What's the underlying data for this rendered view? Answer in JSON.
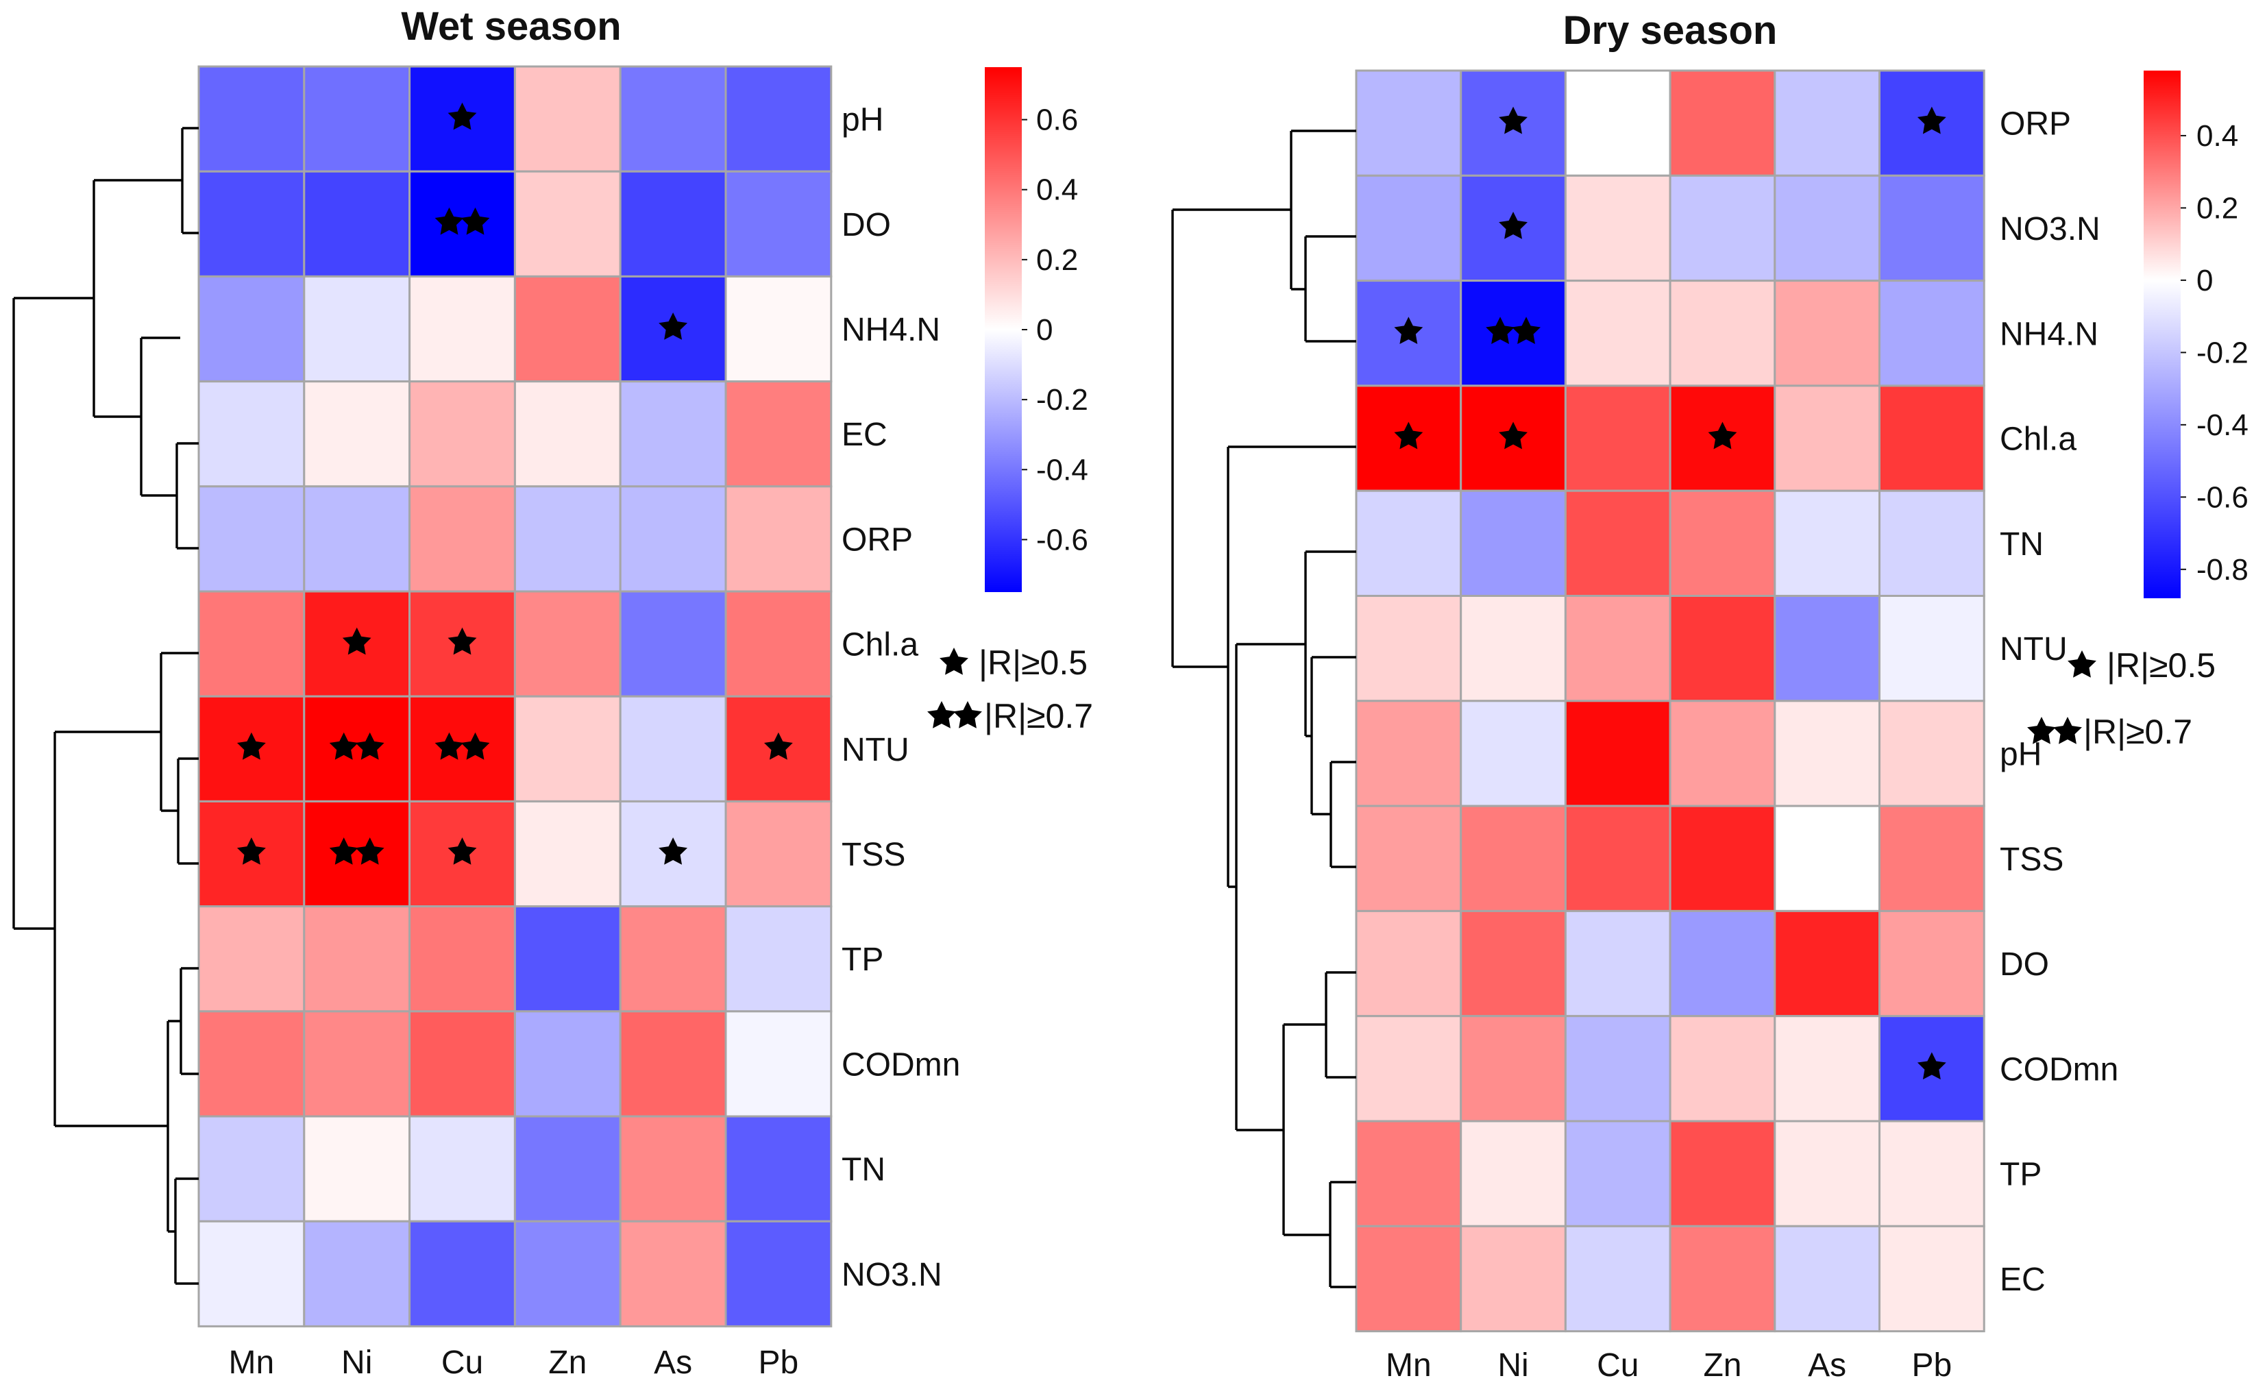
{
  "chart_data": [
    {
      "type": "heatmap",
      "title": "Wet season",
      "columns": [
        "Mn",
        "Ni",
        "Cu",
        "Zn",
        "As",
        "Pb"
      ],
      "rows": [
        "pH",
        "DO",
        "NH4.N",
        "EC",
        "ORP",
        "Chl.a",
        "NTU",
        "TSS",
        "TP",
        "CODmn",
        "TN",
        "NO3.N"
      ],
      "values": [
        [
          -0.45,
          -0.42,
          -0.7,
          0.18,
          -0.4,
          -0.48
        ],
        [
          -0.52,
          -0.55,
          -0.75,
          0.15,
          -0.55,
          -0.4
        ],
        [
          -0.3,
          -0.08,
          0.05,
          0.4,
          -0.62,
          0.02
        ],
        [
          -0.1,
          0.05,
          0.22,
          0.06,
          -0.2,
          0.38
        ],
        [
          -0.2,
          -0.2,
          0.3,
          -0.18,
          -0.2,
          0.22
        ],
        [
          0.4,
          0.67,
          0.58,
          0.35,
          -0.4,
          0.4
        ],
        [
          0.7,
          0.75,
          0.72,
          0.14,
          -0.12,
          0.6
        ],
        [
          0.64,
          0.78,
          0.58,
          0.06,
          -0.1,
          0.28
        ],
        [
          0.23,
          0.3,
          0.4,
          -0.5,
          0.35,
          -0.12
        ],
        [
          0.4,
          0.35,
          0.48,
          -0.25,
          0.45,
          -0.03
        ],
        [
          -0.15,
          0.03,
          -0.08,
          -0.4,
          0.35,
          -0.48
        ],
        [
          -0.05,
          -0.22,
          -0.48,
          -0.35,
          0.3,
          -0.48
        ]
      ],
      "stars": [
        [
          0,
          0,
          1,
          0,
          0,
          0
        ],
        [
          0,
          0,
          2,
          0,
          0,
          0
        ],
        [
          0,
          0,
          0,
          0,
          1,
          0
        ],
        [
          0,
          0,
          0,
          0,
          0,
          0
        ],
        [
          0,
          0,
          0,
          0,
          0,
          0
        ],
        [
          0,
          1,
          1,
          0,
          0,
          0
        ],
        [
          1,
          2,
          2,
          0,
          0,
          1
        ],
        [
          1,
          2,
          1,
          0,
          1,
          0
        ],
        [
          0,
          0,
          0,
          0,
          0,
          0
        ],
        [
          0,
          0,
          0,
          0,
          0,
          0
        ],
        [
          0,
          0,
          0,
          0,
          0,
          0
        ],
        [
          0,
          0,
          0,
          0,
          0,
          0
        ]
      ],
      "colorbar": {
        "min": -0.75,
        "max": 0.75,
        "ticks": [
          "0.6",
          "0.4",
          "0.2",
          "0",
          "-0.2",
          "-0.4",
          "-0.6"
        ],
        "tick_values": [
          0.6,
          0.4,
          0.2,
          0,
          -0.2,
          -0.4,
          -0.6
        ]
      },
      "legend": [
        "|R|≥0.5",
        "|R|≥0.7"
      ]
    },
    {
      "type": "heatmap",
      "title": "Dry season",
      "columns": [
        "Mn",
        "Ni",
        "Cu",
        "Zn",
        "As",
        "Pb"
      ],
      "rows": [
        "ORP",
        "NO3.N",
        "NH4.N",
        "Chl.a",
        "TN",
        "NTU",
        "pH",
        "TSS",
        "DO",
        "CODmn",
        "TP",
        "EC"
      ],
      "values": [
        [
          -0.25,
          -0.55,
          0.0,
          0.35,
          -0.2,
          -0.65
        ],
        [
          -0.3,
          -0.6,
          0.08,
          -0.2,
          -0.25,
          -0.45
        ],
        [
          -0.55,
          -0.85,
          0.08,
          0.1,
          0.2,
          -0.3
        ],
        [
          0.58,
          0.58,
          0.4,
          0.56,
          0.15,
          0.45
        ],
        [
          -0.15,
          -0.35,
          0.4,
          0.3,
          -0.1,
          -0.15
        ],
        [
          0.1,
          0.05,
          0.22,
          0.45,
          -0.4,
          -0.05
        ],
        [
          0.22,
          -0.1,
          0.56,
          0.22,
          0.05,
          0.1
        ],
        [
          0.22,
          0.3,
          0.4,
          0.5,
          0.0,
          0.3
        ],
        [
          0.15,
          0.35,
          -0.15,
          -0.35,
          0.5,
          0.22
        ],
        [
          0.1,
          0.26,
          -0.25,
          0.12,
          0.05,
          -0.65
        ],
        [
          0.3,
          0.05,
          -0.25,
          0.4,
          0.05,
          0.05
        ],
        [
          0.3,
          0.15,
          -0.15,
          0.3,
          -0.15,
          0.05
        ]
      ],
      "stars": [
        [
          0,
          1,
          0,
          0,
          0,
          1
        ],
        [
          0,
          1,
          0,
          0,
          0,
          0
        ],
        [
          1,
          2,
          0,
          0,
          0,
          0
        ],
        [
          1,
          1,
          0,
          1,
          0,
          0
        ],
        [
          0,
          0,
          0,
          0,
          0,
          0
        ],
        [
          0,
          0,
          0,
          0,
          0,
          0
        ],
        [
          0,
          0,
          0,
          0,
          0,
          0
        ],
        [
          0,
          0,
          0,
          0,
          0,
          0
        ],
        [
          0,
          0,
          0,
          0,
          0,
          0
        ],
        [
          0,
          0,
          0,
          0,
          0,
          1
        ],
        [
          0,
          0,
          0,
          0,
          0,
          0
        ],
        [
          0,
          0,
          0,
          0,
          0,
          0
        ]
      ],
      "colorbar": {
        "min": -0.88,
        "max": 0.58,
        "ticks": [
          "0.4",
          "0.2",
          "0",
          "-0.2",
          "-0.4",
          "-0.6",
          "-0.8"
        ],
        "tick_values": [
          0.4,
          0.2,
          0,
          -0.2,
          -0.4,
          -0.6,
          -0.8
        ]
      },
      "legend": [
        "|R|≥0.5",
        "|R|≥0.7"
      ]
    }
  ]
}
